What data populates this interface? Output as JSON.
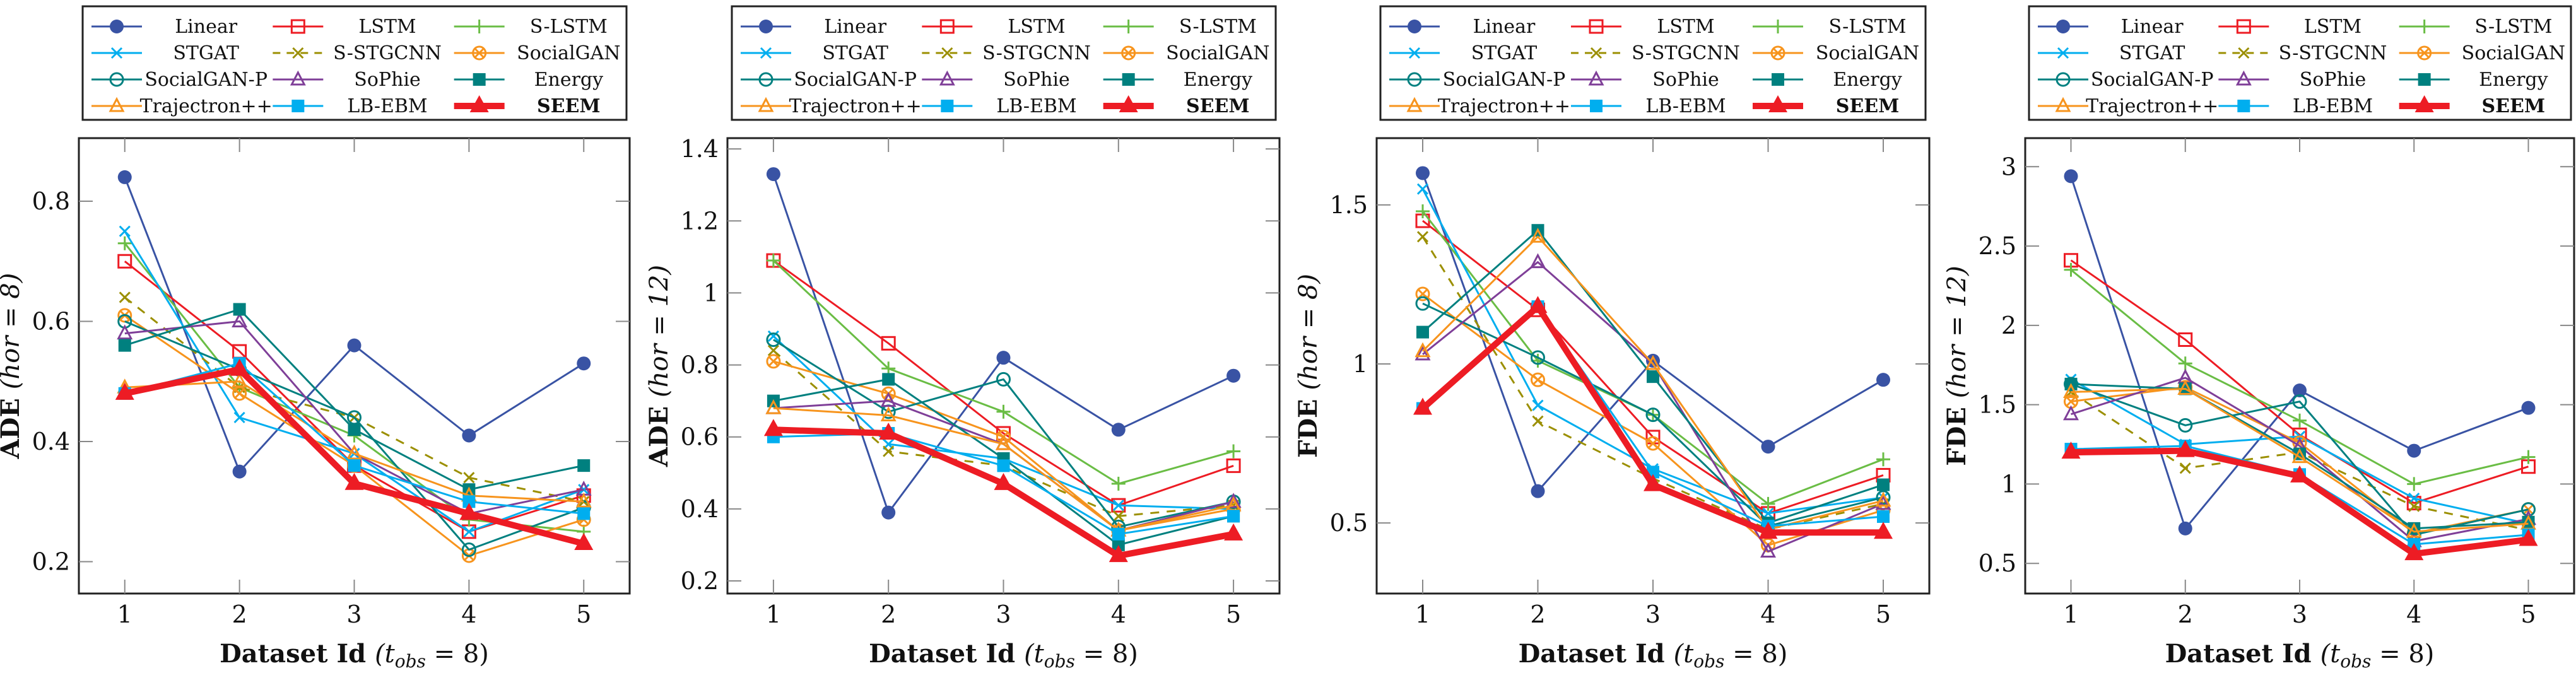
{
  "chart_data": [
    {
      "type": "line",
      "title": "",
      "xlabel": "Dataset Id (t_obs = 8)",
      "xlabel_parts": {
        "main": "Dataset Id",
        "paren": "(t",
        "sub": "obs",
        "rest": " = 8)"
      },
      "ylabel": "ADE (hor = 8)",
      "ylabel_parts": {
        "metric": "ADE",
        "paren": "(hor = 8)"
      },
      "x": [
        1,
        2,
        3,
        4,
        5
      ],
      "xlim": [
        0.6,
        5.4
      ],
      "ylim": [
        0.147,
        0.905
      ],
      "yticks": [
        0.2,
        0.4,
        0.6,
        0.8
      ],
      "ytick_labels": [
        "0.2",
        "0.4",
        "0.6",
        "0.8"
      ],
      "legend_position": "top",
      "grid": false,
      "series": [
        {
          "name": "Linear",
          "values": [
            0.84,
            0.35,
            0.56,
            0.41,
            0.53
          ]
        },
        {
          "name": "LSTM",
          "values": [
            0.7,
            0.55,
            0.36,
            0.25,
            0.31
          ]
        },
        {
          "name": "S-LSTM",
          "values": [
            0.73,
            0.49,
            0.41,
            0.27,
            0.25
          ]
        },
        {
          "name": "STGAT",
          "values": [
            0.75,
            0.44,
            0.38,
            0.25,
            0.32
          ]
        },
        {
          "name": "S-STGCNN",
          "values": [
            0.64,
            0.49,
            0.44,
            0.34,
            0.3
          ]
        },
        {
          "name": "SocialGAN",
          "values": [
            0.61,
            0.48,
            0.36,
            0.21,
            0.27
          ]
        },
        {
          "name": "SocialGAN-P",
          "values": [
            0.6,
            0.52,
            0.44,
            0.22,
            0.29
          ]
        },
        {
          "name": "SoPhie",
          "values": [
            0.58,
            0.6,
            0.38,
            0.28,
            0.32
          ]
        },
        {
          "name": "Energy",
          "values": [
            0.56,
            0.62,
            0.42,
            0.32,
            0.36
          ]
        },
        {
          "name": "Trajectron++",
          "values": [
            0.49,
            0.5,
            0.38,
            0.31,
            0.3
          ]
        },
        {
          "name": "LB-EBM",
          "values": [
            0.48,
            0.53,
            0.36,
            0.3,
            0.28
          ]
        },
        {
          "name": "SEEM",
          "values": [
            0.48,
            0.52,
            0.33,
            0.28,
            0.23
          ]
        }
      ]
    },
    {
      "type": "line",
      "title": "",
      "xlabel": "Dataset Id (t_obs = 8)",
      "xlabel_parts": {
        "main": "Dataset Id",
        "paren": "(t",
        "sub": "obs",
        "rest": " = 8)"
      },
      "ylabel": "ADE (hor = 12)",
      "ylabel_parts": {
        "metric": "ADE",
        "paren": "(hor = 12)"
      },
      "x": [
        1,
        2,
        3,
        4,
        5
      ],
      "xlim": [
        0.6,
        5.4
      ],
      "ylim": [
        0.165,
        1.43
      ],
      "yticks": [
        0.2,
        0.4,
        0.6,
        0.8,
        1.0,
        1.2,
        1.4
      ],
      "ytick_labels": [
        "0.2",
        "0.4",
        "0.6",
        "0.8",
        "1",
        "1.2",
        "1.4"
      ],
      "legend_position": "top",
      "grid": false,
      "series": [
        {
          "name": "Linear",
          "values": [
            1.33,
            0.39,
            0.82,
            0.62,
            0.77
          ]
        },
        {
          "name": "LSTM",
          "values": [
            1.09,
            0.86,
            0.61,
            0.41,
            0.52
          ]
        },
        {
          "name": "S-LSTM",
          "values": [
            1.09,
            0.79,
            0.67,
            0.47,
            0.56
          ]
        },
        {
          "name": "STGAT",
          "values": [
            0.88,
            0.58,
            0.54,
            0.41,
            0.4
          ]
        },
        {
          "name": "S-STGCNN",
          "values": [
            0.84,
            0.56,
            0.52,
            0.38,
            0.41
          ]
        },
        {
          "name": "SocialGAN",
          "values": [
            0.81,
            0.72,
            0.6,
            0.34,
            0.4
          ]
        },
        {
          "name": "SocialGAN-P",
          "values": [
            0.87,
            0.67,
            0.76,
            0.35,
            0.42
          ]
        },
        {
          "name": "SoPhie",
          "values": [
            0.68,
            0.7,
            0.58,
            0.34,
            0.42
          ]
        },
        {
          "name": "Energy",
          "values": [
            0.7,
            0.76,
            0.54,
            0.3,
            0.38
          ]
        },
        {
          "name": "Trajectron++",
          "values": [
            0.68,
            0.66,
            0.58,
            0.34,
            0.41
          ]
        },
        {
          "name": "LB-EBM",
          "values": [
            0.6,
            0.61,
            0.52,
            0.33,
            0.38
          ]
        },
        {
          "name": "SEEM",
          "values": [
            0.62,
            0.61,
            0.47,
            0.27,
            0.33
          ]
        }
      ]
    },
    {
      "type": "line",
      "title": "",
      "xlabel": "Dataset Id (t_obs = 8)",
      "xlabel_parts": {
        "main": "Dataset Id",
        "paren": "(t",
        "sub": "obs",
        "rest": " = 8)"
      },
      "ylabel": "FDE (hor = 8)",
      "ylabel_parts": {
        "metric": "FDE",
        "paren": "(hor = 8)"
      },
      "x": [
        1,
        2,
        3,
        4,
        5
      ],
      "xlim": [
        0.6,
        5.4
      ],
      "ylim": [
        0.278,
        1.71
      ],
      "yticks": [
        0.5,
        1.0,
        1.5
      ],
      "ytick_labels": [
        "0.5",
        "1",
        "1.5"
      ],
      "legend_position": "top",
      "grid": false,
      "series": [
        {
          "name": "Linear",
          "values": [
            1.6,
            0.6,
            1.01,
            0.74,
            0.95
          ]
        },
        {
          "name": "LSTM",
          "values": [
            1.45,
            1.17,
            0.77,
            0.53,
            0.65
          ]
        },
        {
          "name": "S-LSTM",
          "values": [
            1.48,
            1.01,
            0.84,
            0.56,
            0.7
          ]
        },
        {
          "name": "STGAT",
          "values": [
            1.55,
            0.87,
            0.67,
            0.53,
            0.58
          ]
        },
        {
          "name": "S-STGCNN",
          "values": [
            1.4,
            0.82,
            0.64,
            0.48,
            0.56
          ]
        },
        {
          "name": "SocialGAN",
          "values": [
            1.22,
            0.95,
            0.75,
            0.43,
            0.54
          ]
        },
        {
          "name": "SocialGAN-P",
          "values": [
            1.19,
            1.02,
            0.84,
            0.49,
            0.58
          ]
        },
        {
          "name": "SoPhie",
          "values": [
            1.03,
            1.32,
            1.0,
            0.41,
            0.56
          ]
        },
        {
          "name": "Energy",
          "values": [
            1.1,
            1.42,
            0.96,
            0.5,
            0.62
          ]
        },
        {
          "name": "Trajectron++",
          "values": [
            1.04,
            1.4,
            1.0,
            0.48,
            0.57
          ]
        },
        {
          "name": "LB-EBM",
          "values": [
            0.86,
            1.18,
            0.66,
            0.49,
            0.52
          ]
        },
        {
          "name": "SEEM",
          "values": [
            0.86,
            1.18,
            0.62,
            0.47,
            0.47
          ]
        }
      ]
    },
    {
      "type": "line",
      "title": "",
      "xlabel": "Dataset Id (t_obs = 8)",
      "xlabel_parts": {
        "main": "Dataset Id",
        "paren": "(t",
        "sub": "obs",
        "rest": " = 8)"
      },
      "ylabel": "FDE (hor = 12)",
      "ylabel_parts": {
        "metric": "FDE",
        "paren": "(hor = 12)"
      },
      "x": [
        1,
        2,
        3,
        4,
        5
      ],
      "xlim": [
        0.6,
        5.4
      ],
      "ylim": [
        0.31,
        3.18
      ],
      "yticks": [
        0.5,
        1.0,
        1.5,
        2.0,
        2.5,
        3.0
      ],
      "ytick_labels": [
        "0.5",
        "1",
        "1.5",
        "2",
        "2.5",
        "3"
      ],
      "legend_position": "top",
      "grid": false,
      "series": [
        {
          "name": "Linear",
          "values": [
            2.94,
            0.72,
            1.59,
            1.21,
            1.48
          ]
        },
        {
          "name": "LSTM",
          "values": [
            2.41,
            1.91,
            1.31,
            0.88,
            1.11
          ]
        },
        {
          "name": "S-LSTM",
          "values": [
            2.35,
            1.76,
            1.4,
            1.0,
            1.17
          ]
        },
        {
          "name": "STGAT",
          "values": [
            1.66,
            1.25,
            1.3,
            0.91,
            0.75
          ]
        },
        {
          "name": "S-STGCNN",
          "values": [
            1.58,
            1.1,
            1.2,
            0.86,
            0.71
          ]
        },
        {
          "name": "SocialGAN",
          "values": [
            1.52,
            1.61,
            1.26,
            0.69,
            0.84
          ]
        },
        {
          "name": "SocialGAN-P",
          "values": [
            1.63,
            1.37,
            1.52,
            0.68,
            0.84
          ]
        },
        {
          "name": "SoPhie",
          "values": [
            1.44,
            1.67,
            1.24,
            0.64,
            0.78
          ]
        },
        {
          "name": "Energy",
          "values": [
            1.63,
            1.6,
            1.19,
            0.72,
            0.76
          ]
        },
        {
          "name": "Trajectron++",
          "values": [
            1.58,
            1.6,
            1.17,
            0.7,
            0.75
          ]
        },
        {
          "name": "LB-EBM",
          "values": [
            1.22,
            1.24,
            1.06,
            0.62,
            0.68
          ]
        },
        {
          "name": "SEEM",
          "values": [
            1.2,
            1.21,
            1.05,
            0.56,
            0.65
          ]
        }
      ]
    }
  ],
  "legend": {
    "entries": [
      {
        "name": "Linear",
        "color": "#3953a4",
        "marker": "filled-circle",
        "dash": false,
        "bold": false
      },
      {
        "name": "LSTM",
        "color": "#ed1c24",
        "marker": "open-square",
        "dash": false,
        "bold": false
      },
      {
        "name": "S-LSTM",
        "color": "#6abd45",
        "marker": "plus",
        "dash": false,
        "bold": false
      },
      {
        "name": "STGAT",
        "color": "#00aeef",
        "marker": "cross",
        "dash": false,
        "bold": false
      },
      {
        "name": "S-STGCNN",
        "color": "#9b8f00",
        "marker": "cross",
        "dash": true,
        "bold": false
      },
      {
        "name": "SocialGAN",
        "color": "#f7941d",
        "marker": "circle-x",
        "dash": false,
        "bold": false
      },
      {
        "name": "SocialGAN-P",
        "color": "#008080",
        "marker": "open-circle",
        "dash": false,
        "bold": false
      },
      {
        "name": "SoPhie",
        "color": "#7f3f98",
        "marker": "open-triangle",
        "dash": false,
        "bold": false
      },
      {
        "name": "Energy",
        "color": "#00807f",
        "marker": "filled-square",
        "dash": false,
        "bold": false
      },
      {
        "name": "Trajectron++",
        "color": "#f7941d",
        "marker": "open-triangle",
        "dash": false,
        "bold": false
      },
      {
        "name": "LB-EBM",
        "color": "#00aeef",
        "marker": "filled-square",
        "dash": false,
        "bold": false
      },
      {
        "name": "SEEM",
        "color": "#ed1c24",
        "marker": "filled-triangle",
        "dash": false,
        "bold": true
      }
    ]
  }
}
